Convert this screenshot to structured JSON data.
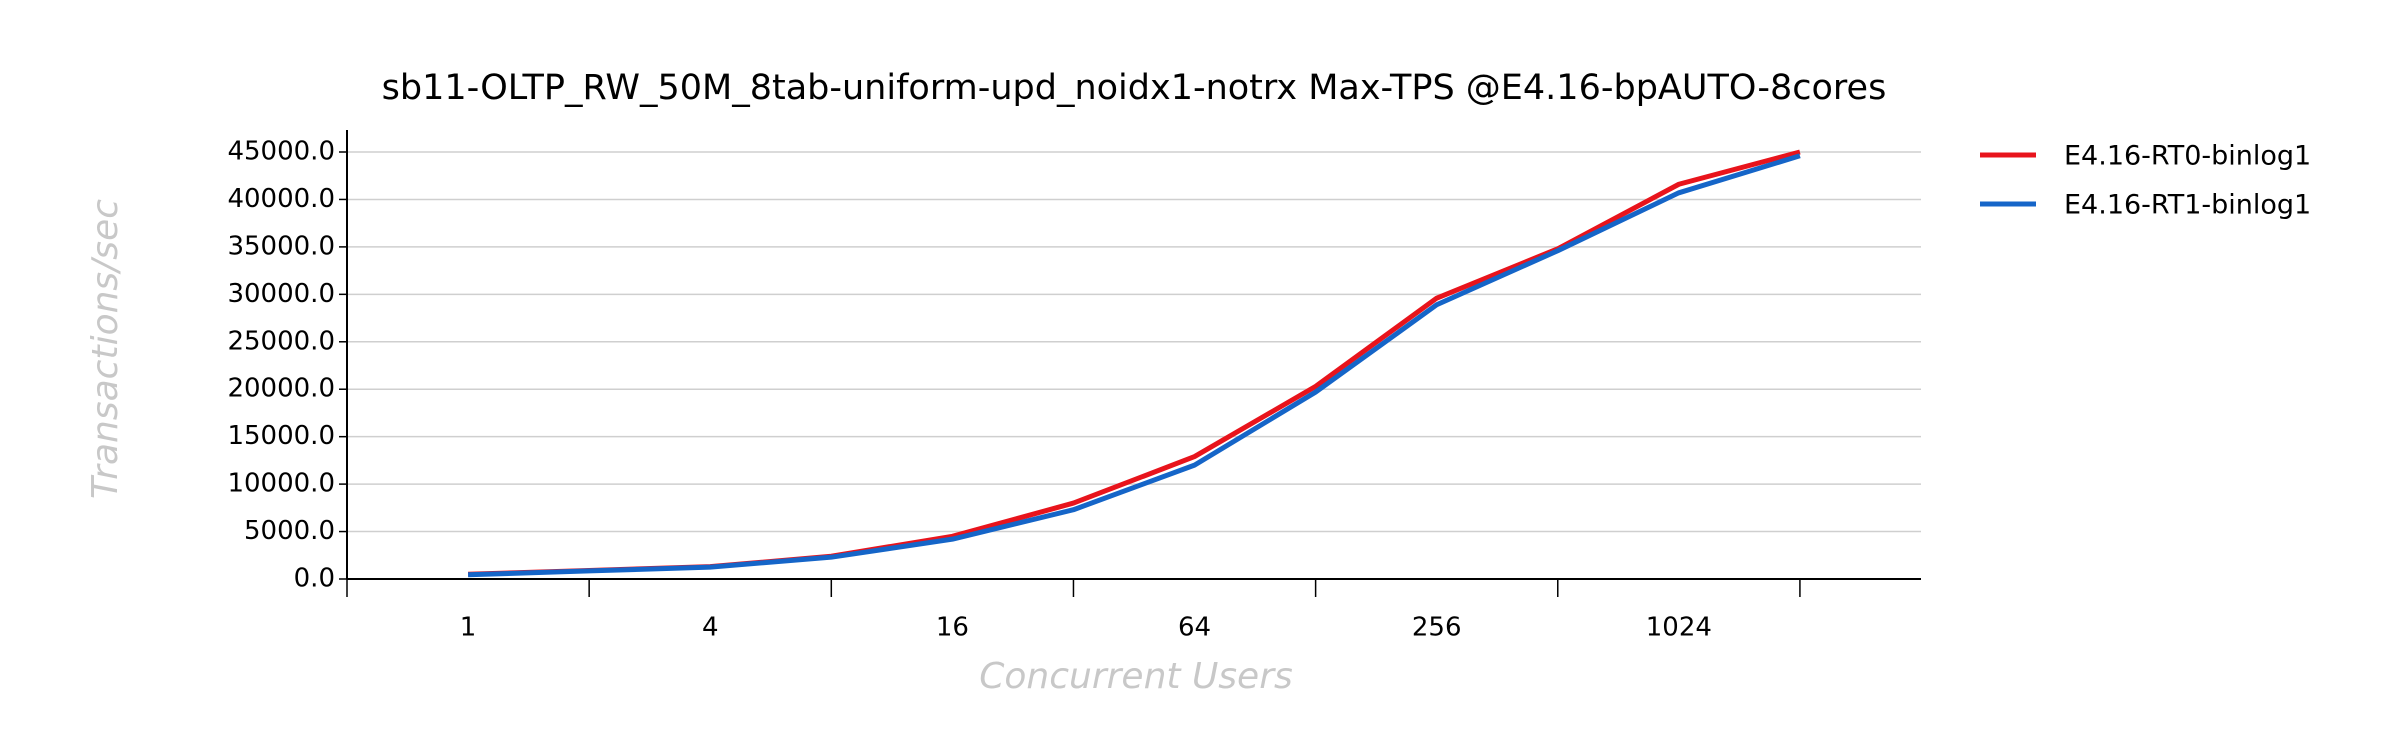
{
  "chart_data": {
    "type": "line",
    "title": "sb11-OLTP_RW_50M_8tab-uniform-upd_noidx1-notrx Max-TPS @E4.16-bpAUTO-8cores",
    "xlabel": "Concurrent Users",
    "ylabel": "Transactions/sec",
    "categories": [
      "1",
      null,
      "4",
      null,
      "16",
      null,
      "64",
      null,
      "256",
      null,
      "1024",
      null
    ],
    "series": [
      {
        "name": "E4.16-RT0-binlog1",
        "color": "#e8141c",
        "values": [
          500,
          900,
          1300,
          2400,
          4500,
          8000,
          12900,
          20300,
          29600,
          34800,
          41600,
          45000
        ]
      },
      {
        "name": "E4.16-RT1-binlog1",
        "color": "#1565c8",
        "values": [
          450,
          850,
          1250,
          2300,
          4200,
          7300,
          12000,
          19700,
          28900,
          34600,
          40700,
          44600
        ]
      }
    ],
    "ylim": [
      0,
      45000
    ],
    "yticks": [
      {
        "value": 0,
        "label": "0.0"
      },
      {
        "value": 5000,
        "label": "5000.0"
      },
      {
        "value": 10000,
        "label": "10000.0"
      },
      {
        "value": 15000,
        "label": "15000.0"
      },
      {
        "value": 20000,
        "label": "20000.0"
      },
      {
        "value": 25000,
        "label": "25000.0"
      },
      {
        "value": 30000,
        "label": "30000.0"
      },
      {
        "value": 35000,
        "label": "35000.0"
      },
      {
        "value": 40000,
        "label": "40000.0"
      },
      {
        "value": 45000,
        "label": "45000.0"
      }
    ],
    "grid": true,
    "legend": "outside-right"
  }
}
